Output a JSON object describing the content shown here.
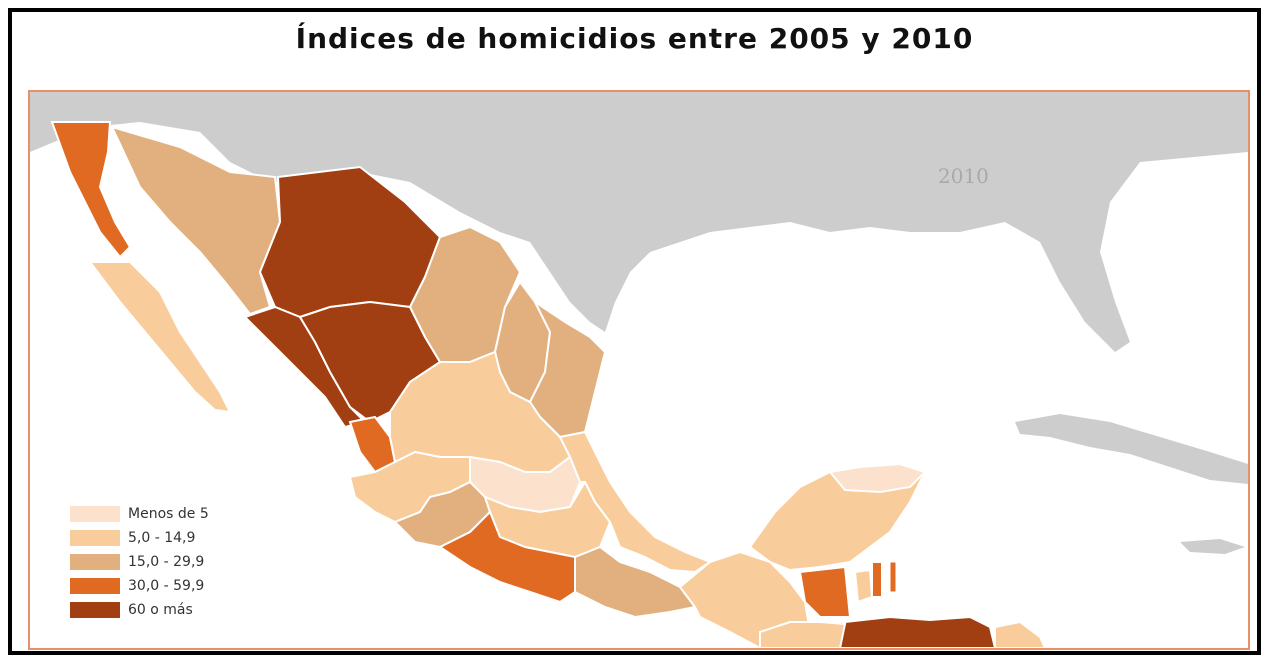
{
  "title": "Índices de homicidios entre 2005 y 2010",
  "map": {
    "year_label": "2010",
    "colors": {
      "land_background": "#cdcdcd",
      "water": "#ffffff",
      "border": "#ffffff",
      "frame_border": "#e8906a"
    }
  },
  "legend": {
    "items": [
      {
        "label": "Menos de 5",
        "color": "#fce2cc"
      },
      {
        "label": "5,0 - 14,9",
        "color": "#f9cc9c"
      },
      {
        "label": "15,0 - 29,9",
        "color": "#e1b07e"
      },
      {
        "label": "30,0 - 59,9",
        "color": "#e06a22"
      },
      {
        "label": "60 o más",
        "color": "#a23f12"
      }
    ]
  }
}
